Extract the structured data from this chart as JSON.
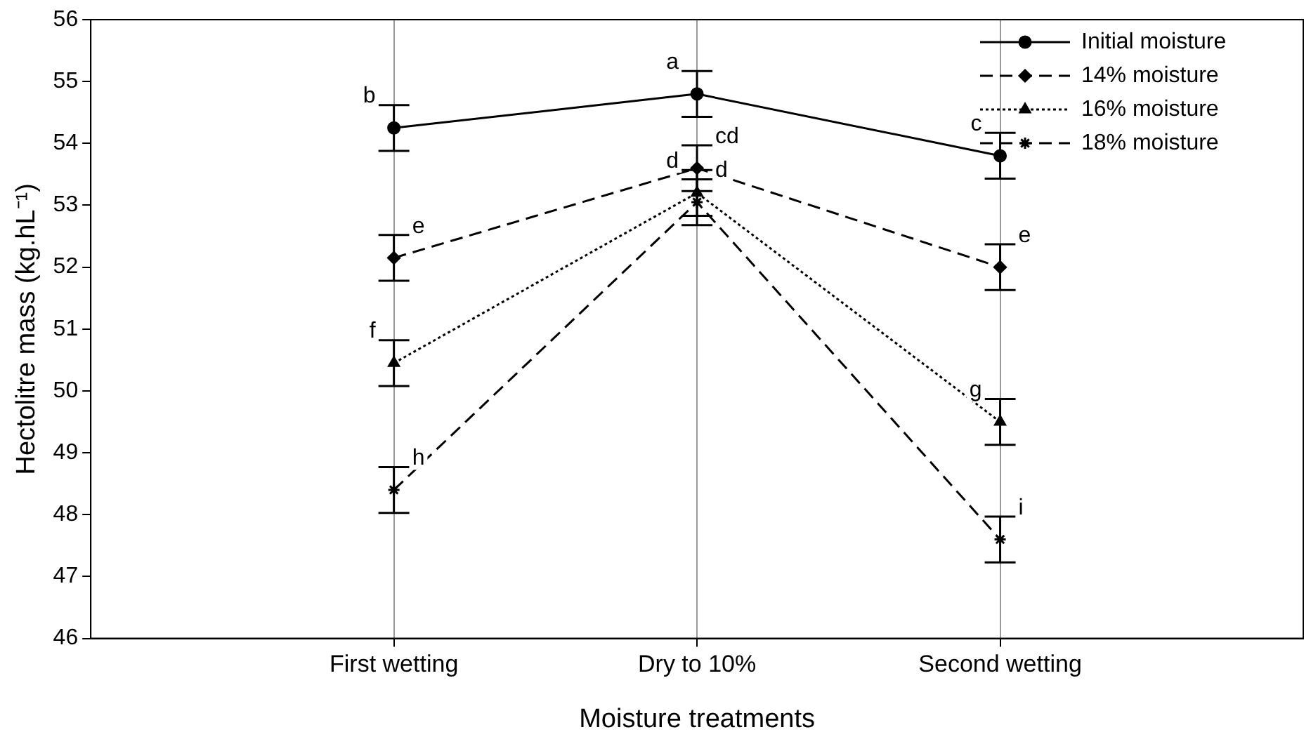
{
  "chart_data": {
    "type": "line",
    "xlabel": "Moisture treatments",
    "ylabel": "Hectolitre mass (kg.hL⁻¹)",
    "categories": [
      "First wetting",
      "Dry to 10%",
      "Second wetting"
    ],
    "ylim": [
      46,
      56
    ],
    "yticks": [
      46,
      47,
      48,
      49,
      50,
      51,
      52,
      53,
      54,
      55,
      56
    ],
    "grid": "x",
    "legend": "top right",
    "series": [
      {
        "name": "Initial moisture",
        "color": "#000000",
        "marker": "circle",
        "line_style": "solid",
        "values": [
          54.25,
          54.8,
          53.8
        ],
        "errors": [
          0.37,
          0.37,
          0.37
        ],
        "value_labels": [
          "b",
          "a",
          "c"
        ]
      },
      {
        "name": "14% moisture",
        "color": "#000000",
        "marker": "diamond",
        "line_style": "dashed",
        "values": [
          52.15,
          53.6,
          52.0
        ],
        "errors": [
          0.37,
          0.37,
          0.37
        ],
        "value_labels": [
          "e",
          "cd",
          "e"
        ]
      },
      {
        "name": "16% moisture",
        "color": "#000000",
        "marker": "triangle",
        "line_style": "dotted",
        "values": [
          50.45,
          53.2,
          49.5
        ],
        "errors": [
          0.37,
          0.37,
          0.37
        ],
        "value_labels": [
          "f",
          "d",
          "g"
        ]
      },
      {
        "name": "18% moisture",
        "color": "#000000",
        "marker": "cross",
        "line_style": "dashed",
        "values": [
          48.4,
          53.05,
          47.6
        ],
        "errors": [
          0.37,
          0.37,
          0.37
        ],
        "value_labels": [
          "h",
          "d",
          "i"
        ]
      }
    ]
  }
}
